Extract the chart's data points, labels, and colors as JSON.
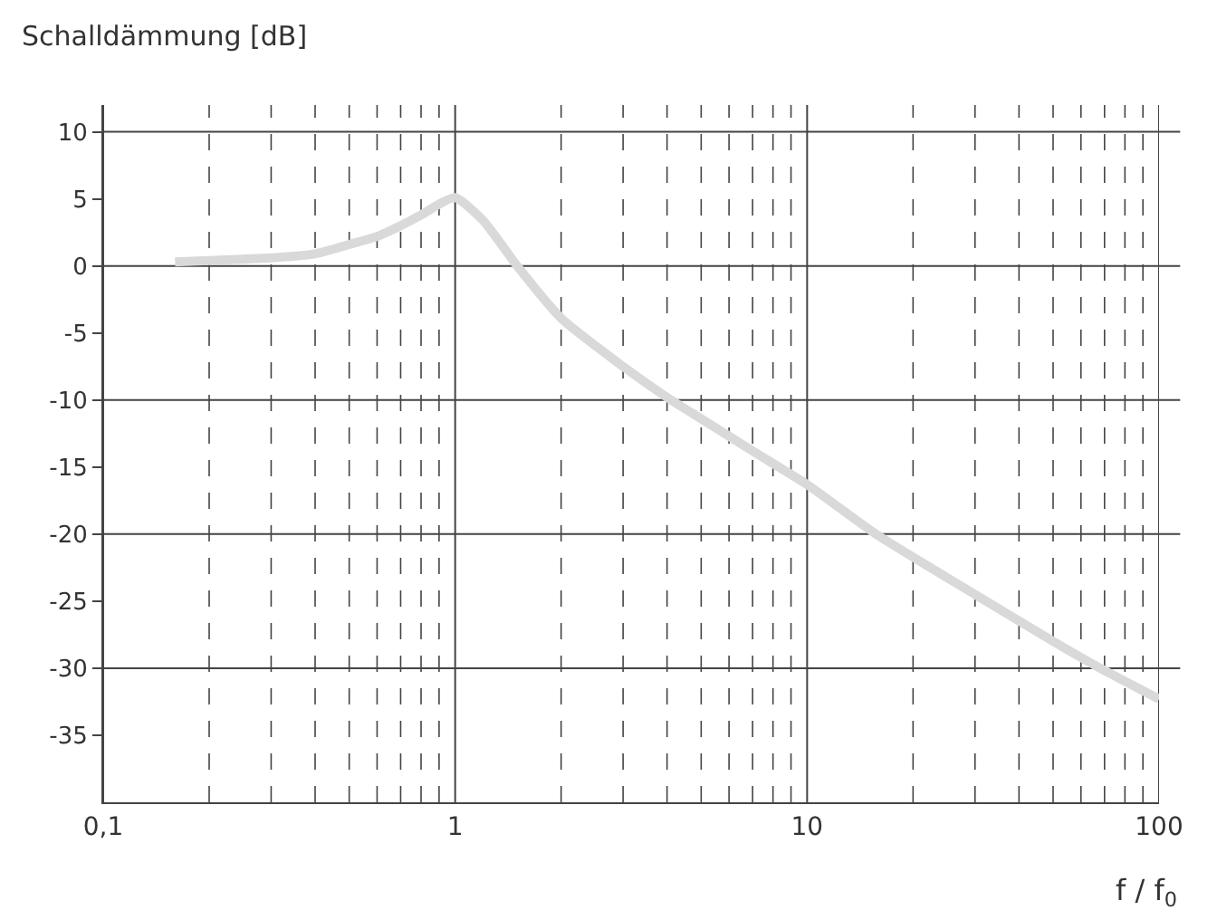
{
  "chart_data": {
    "type": "line",
    "ylabel": "Schalldämmung [dB]",
    "xlabel": "f / f$_{0}$",
    "log": "x",
    "x": [
      0.16,
      0.2,
      0.3,
      0.4,
      0.5,
      0.6,
      0.7,
      0.8,
      0.9,
      1.0,
      1.2,
      1.5,
      2,
      3,
      4,
      5,
      7,
      10,
      15.7,
      30,
      50,
      68,
      100
    ],
    "series": [
      {
        "color": "#d9d9d9",
        "values": [
          0.3,
          0.4,
          0.6,
          0.9,
          1.6,
          2.2,
          3.0,
          3.8,
          4.6,
          5.1,
          3.4,
          0,
          -3.9,
          -7.5,
          -9.8,
          -11.4,
          -13.8,
          -16.3,
          -20,
          -24.5,
          -28,
          -30,
          -32.3
        ]
      }
    ],
    "xlim": [
      0.1,
      100
    ],
    "ylim": [
      -40,
      12
    ],
    "xticks": [
      {
        "value": 0.1,
        "label": "0,1"
      },
      {
        "value": 0.2,
        "label": null
      },
      {
        "value": 0.3,
        "label": null
      },
      {
        "value": 0.4,
        "label": null
      },
      {
        "value": 0.5,
        "label": null
      },
      {
        "value": 0.6,
        "label": null
      },
      {
        "value": 0.7,
        "label": null
      },
      {
        "value": 0.8,
        "label": null
      },
      {
        "value": 0.9,
        "label": null
      },
      1,
      {
        "value": 2,
        "label": null
      },
      {
        "value": 3,
        "label": null
      },
      {
        "value": 4,
        "label": null
      },
      {
        "value": 5,
        "label": null
      },
      {
        "value": 6,
        "label": null
      },
      {
        "value": 7,
        "label": null
      },
      {
        "value": 8,
        "label": null
      },
      {
        "value": 9,
        "label": null
      },
      10,
      {
        "value": 20,
        "label": null
      },
      {
        "value": 30,
        "label": null
      },
      {
        "value": 40,
        "label": null
      },
      {
        "value": 50,
        "label": null
      },
      {
        "value": 60,
        "label": null
      },
      {
        "value": 70,
        "label": null
      },
      {
        "value": 80,
        "label": null
      },
      {
        "value": 90,
        "label": null
      },
      100
    ],
    "yticks": [
      10,
      5,
      0,
      -5,
      -10,
      -15,
      -20,
      -25,
      -30,
      -35
    ],
    "grid": true,
    "marker": "none",
    "line_style": "solid"
  }
}
